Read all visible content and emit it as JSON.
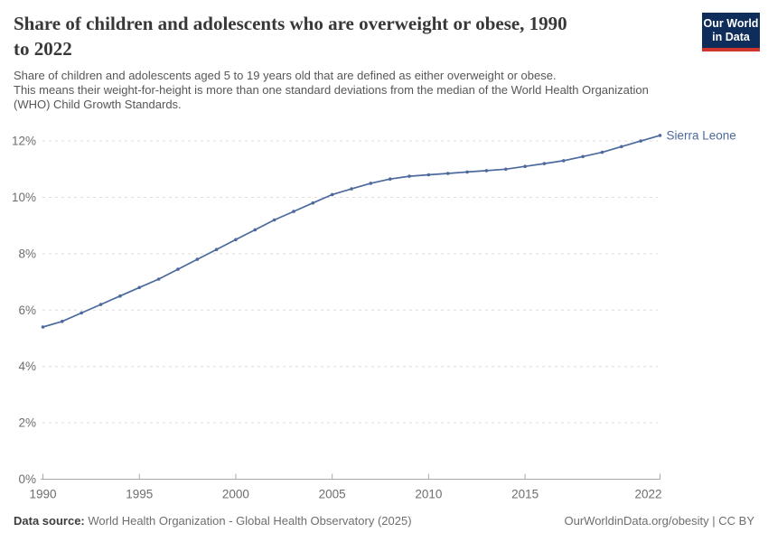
{
  "header": {
    "title_lines": [
      "Share of children and adolescents who are overweight or obese, 1990",
      "to 2022"
    ],
    "subtitle_lines": [
      "Share of children and adolescents aged 5 to 19 years old that are defined as either overweight or obese.",
      "This means their weight-for-height is more than one standard deviations from the median of the World Health Organization",
      "(WHO) Child Growth Standards."
    ],
    "logo": {
      "lines": [
        "Our World",
        "in Data"
      ],
      "bg_color": "#0F2D5A",
      "stripe_color": "#CE352C"
    }
  },
  "chart_data": {
    "type": "line",
    "title": "Share of children and adolescents who are overweight or obese, 1990 to 2022",
    "xlabel": "",
    "ylabel": "",
    "unit": "%",
    "grid": true,
    "legend_position": "end-of-line",
    "x_range": [
      1990,
      2022
    ],
    "y_range": [
      0,
      12.5
    ],
    "years": [
      1990,
      1991,
      1992,
      1993,
      1994,
      1995,
      1996,
      1997,
      1998,
      1999,
      2000,
      2001,
      2002,
      2003,
      2004,
      2005,
      2006,
      2007,
      2008,
      2009,
      2010,
      2011,
      2012,
      2013,
      2014,
      2015,
      2016,
      2017,
      2018,
      2019,
      2020,
      2021,
      2022
    ],
    "series": [
      {
        "name": "Sierra Leone",
        "color": "#4C6A9D",
        "values": [
          5.4,
          5.6,
          5.9,
          6.2,
          6.5,
          6.8,
          7.1,
          7.45,
          7.8,
          8.15,
          8.5,
          8.85,
          9.2,
          9.5,
          9.8,
          10.1,
          10.3,
          10.5,
          10.65,
          10.75,
          10.8,
          10.85,
          10.9,
          10.95,
          11.0,
          11.1,
          11.2,
          11.3,
          11.45,
          11.6,
          11.8,
          12.0,
          12.2
        ]
      }
    ],
    "xticks": [
      1990,
      1995,
      2000,
      2005,
      2010,
      2015,
      2022
    ],
    "x_tick_labels": [
      "1990",
      "1995",
      "2000",
      "2005",
      "2010",
      "2015",
      "2022"
    ],
    "yticks": [
      0,
      2,
      4,
      6,
      8,
      10,
      12
    ],
    "y_tick_labels": [
      "0%",
      "2%",
      "4%",
      "6%",
      "8%",
      "10%",
      "12%"
    ]
  },
  "footer": {
    "source_label": "Data source:",
    "source_text": "World Health Organization - Global Health Observatory (2025)",
    "credit": "OurWorldinData.org/obesity | CC BY"
  }
}
